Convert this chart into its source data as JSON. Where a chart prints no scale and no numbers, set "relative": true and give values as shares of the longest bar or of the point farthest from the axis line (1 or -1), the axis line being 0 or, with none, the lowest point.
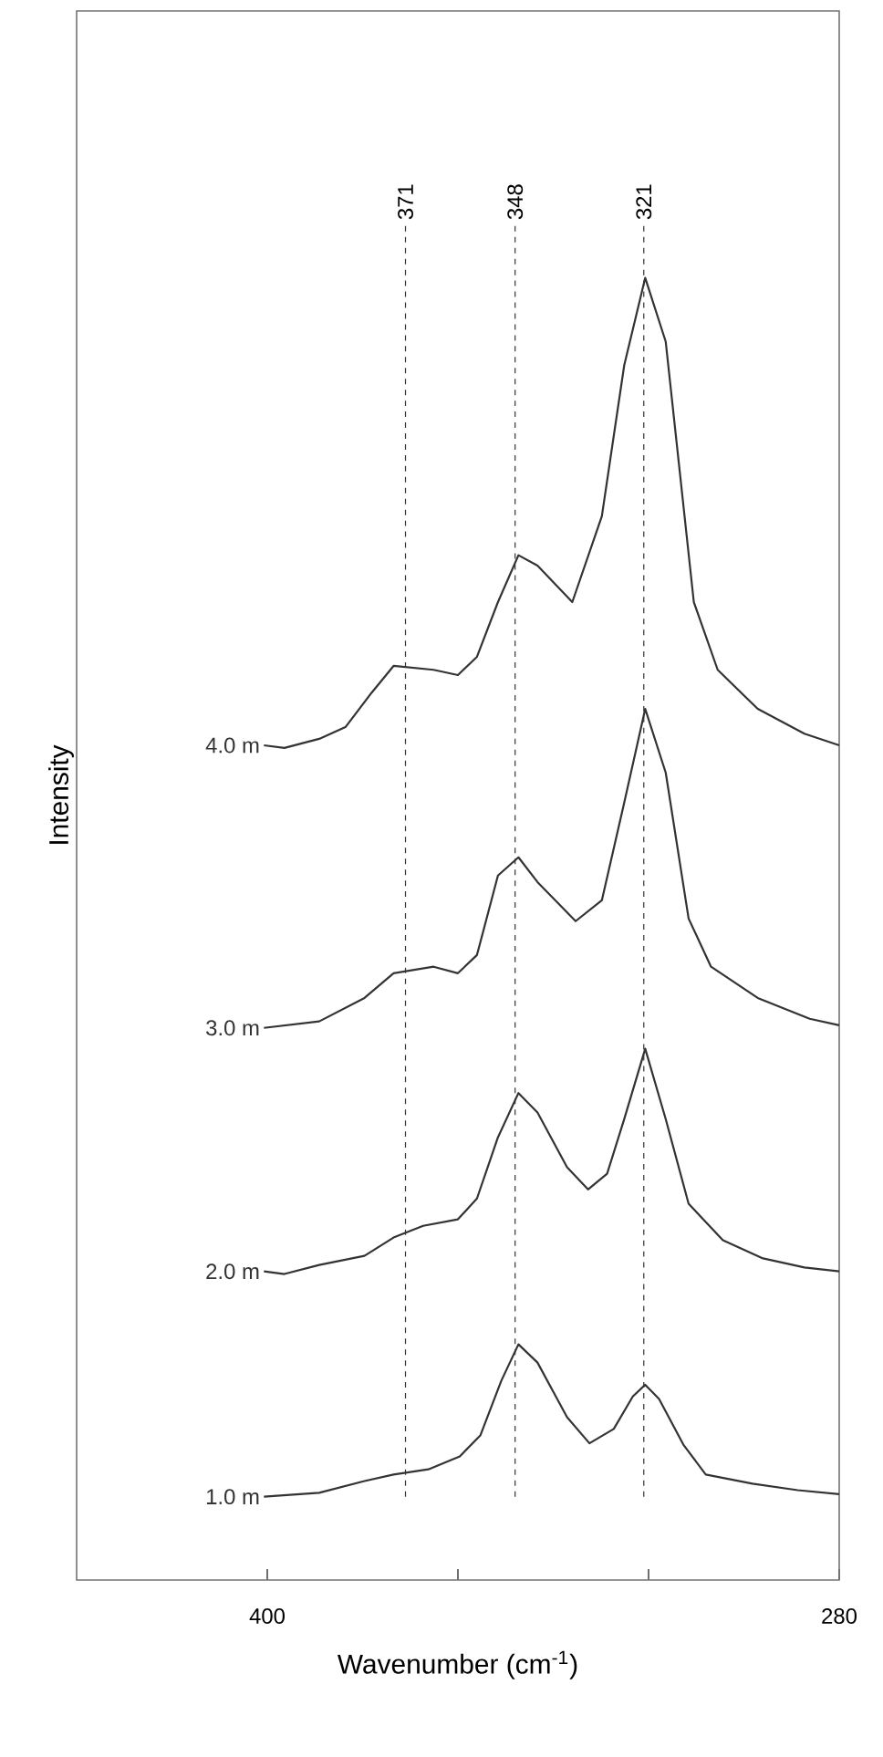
{
  "chart_data": {
    "type": "line",
    "relative": true,
    "xlabel": "Wavenumber (cm$^{-1}$)",
    "ylabel": "Intensity",
    "xlim": [
      440,
      280
    ],
    "xticks": [
      400,
      {
        "value": 360,
        "label": null
      },
      {
        "value": 320,
        "label": null
      },
      280
    ],
    "tick_labels": "x",
    "grid": false,
    "legend": false,
    "marker": "none",
    "line_style": "solid",
    "ref_lines": [
      {
        "axis": "x",
        "value": 371,
        "label": "371",
        "color": "#333333",
        "line_style": "dashed"
      },
      {
        "axis": "x",
        "value": 348,
        "label": "348",
        "color": "#333333",
        "line_style": "dashed"
      },
      {
        "axis": "x",
        "value": 321,
        "label": "321",
        "color": "#333333",
        "line_style": "dashed"
      }
    ],
    "series": [
      {
        "name": "1.0 m",
        "color": "#333333",
        "x": [
          400.7,
          389.1,
          379.6,
          373.5,
          366.2,
          359.6,
          355.3,
          350.9,
          347.3,
          343.3,
          337.1,
          332.4,
          327.3,
          323.3,
          320.7,
          317.8,
          312.7,
          308.0,
          298.2,
          288.7,
          280
        ],
        "values": [
          0.064,
          0.067,
          0.076,
          0.081,
          0.085,
          0.095,
          0.111,
          0.153,
          0.181,
          0.167,
          0.125,
          0.105,
          0.116,
          0.141,
          0.15,
          0.139,
          0.104,
          0.081,
          0.074,
          0.069,
          0.066
        ]
      },
      {
        "name": "2.0 m",
        "color": "#333333",
        "x": [
          400.7,
          396.4,
          389.1,
          379.6,
          373.5,
          367.3,
          360,
          356,
          351.6,
          347.3,
          343.3,
          337.1,
          332.7,
          328.7,
          325.1,
          320.7,
          316.4,
          311.6,
          304.4,
          296,
          287.3,
          280
        ],
        "values": [
          0.237,
          0.235,
          0.242,
          0.249,
          0.263,
          0.272,
          0.277,
          0.293,
          0.34,
          0.374,
          0.359,
          0.317,
          0.3,
          0.312,
          0.354,
          0.408,
          0.354,
          0.289,
          0.261,
          0.247,
          0.24,
          0.237
        ]
      },
      {
        "name": "3.0 m",
        "color": "#333333",
        "x": [
          400.7,
          389.1,
          379.6,
          373.5,
          365.1,
          360,
          356,
          351.6,
          347.3,
          343.3,
          335.3,
          329.8,
          325.1,
          320.7,
          316.4,
          311.6,
          306.9,
          297.1,
          286.2,
          280
        ],
        "values": [
          0.424,
          0.429,
          0.447,
          0.466,
          0.471,
          0.466,
          0.48,
          0.541,
          0.555,
          0.536,
          0.506,
          0.522,
          0.597,
          0.669,
          0.62,
          0.508,
          0.471,
          0.447,
          0.431,
          0.426
        ]
      },
      {
        "name": "4.0 m",
        "color": "#333333",
        "x": [
          400.7,
          396.4,
          389.1,
          383.6,
          378.2,
          373.5,
          365.1,
          360,
          356,
          351.6,
          347.3,
          343.3,
          336,
          329.8,
          325.1,
          320.7,
          316.4,
          310.5,
          305.5,
          297.1,
          287.3,
          280
        ],
        "values": [
          0.641,
          0.639,
          0.646,
          0.655,
          0.681,
          0.702,
          0.699,
          0.695,
          0.709,
          0.751,
          0.787,
          0.779,
          0.751,
          0.817,
          0.933,
          1,
          0.951,
          0.751,
          0.699,
          0.669,
          0.65,
          0.641
        ]
      }
    ]
  }
}
